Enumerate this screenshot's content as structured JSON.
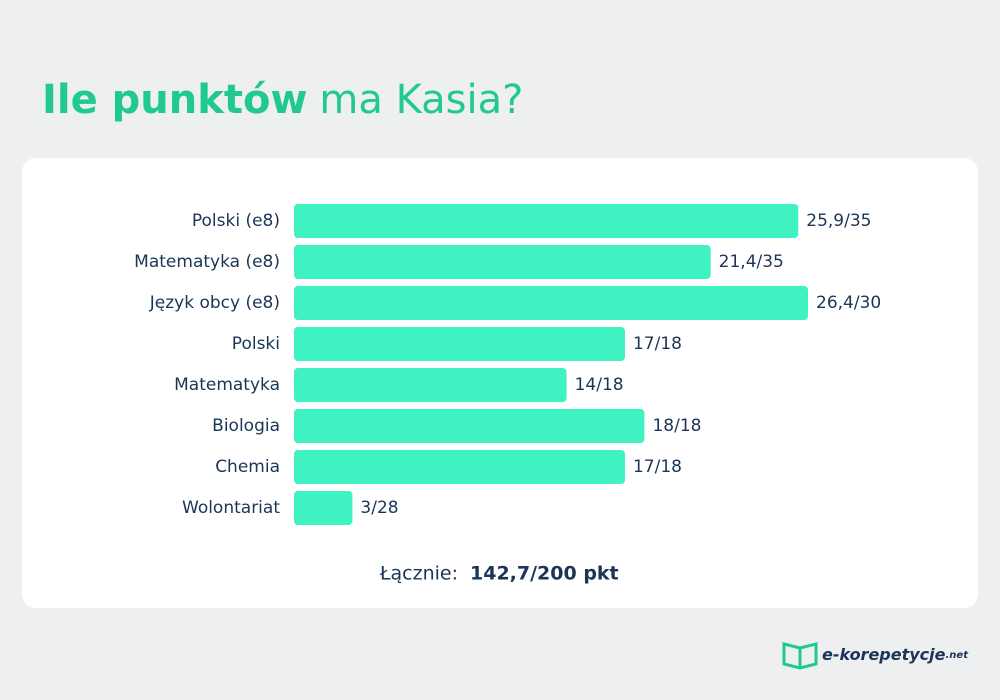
{
  "chart_data": {
    "type": "bar",
    "orientation": "horizontal",
    "title_bold": "Ile punktów",
    "title_rest": "ma Kasia?",
    "categories": [
      "Polski (e8)",
      "Matematyka (e8)",
      "Język obcy (e8)",
      "Polski",
      "Matematyka",
      "Biologia",
      "Chemia",
      "Wolontariat"
    ],
    "values": [
      25.9,
      21.4,
      26.4,
      17,
      14,
      18,
      17,
      3
    ],
    "value_labels": [
      "25,9/35",
      "21,4/35",
      "26,4/30",
      "17/18",
      "14/18",
      "18/18",
      "17/18",
      "3/28"
    ],
    "color": "#3ef2c2",
    "total_label": "Łącznie:",
    "total": "142,7/200 pkt"
  },
  "logo": {
    "name": "e-korepetycje",
    "suffix": ".net"
  }
}
